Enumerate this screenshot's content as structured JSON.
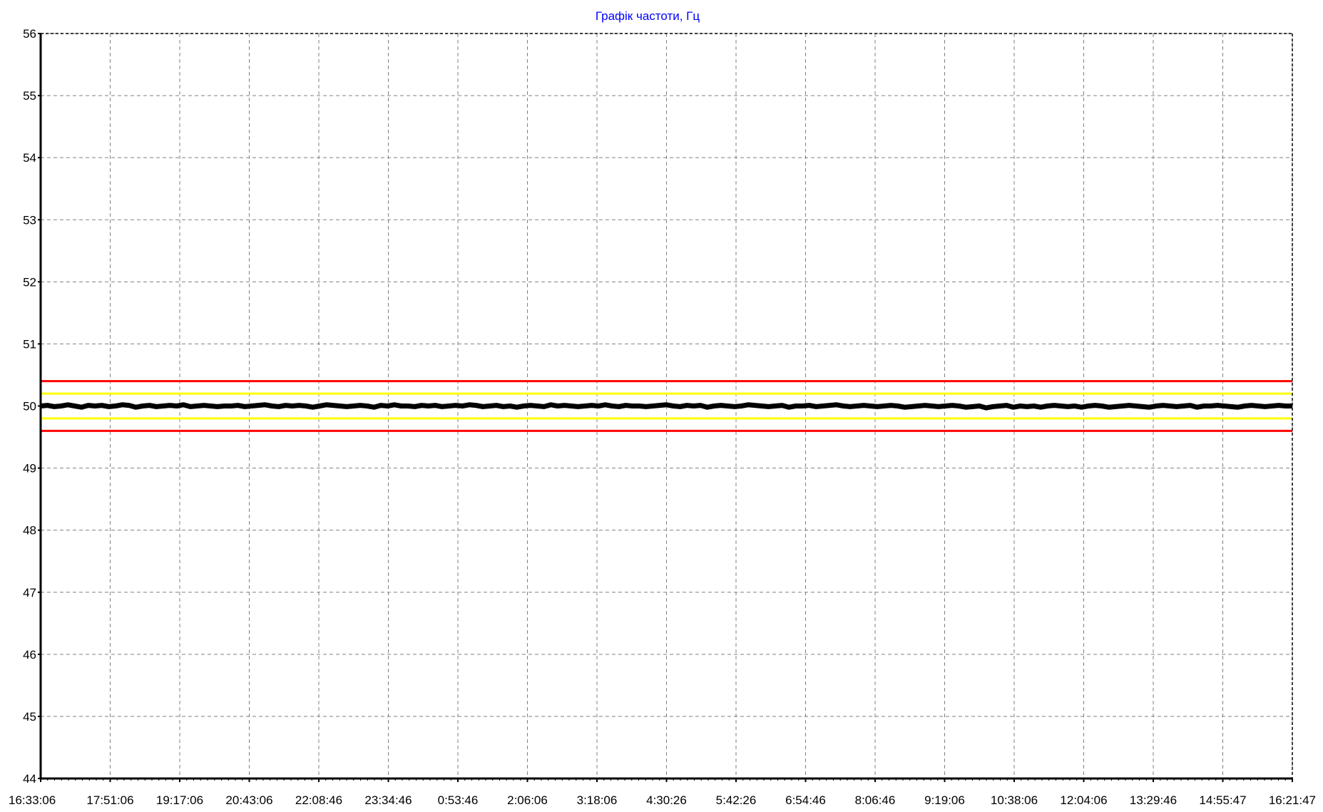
{
  "chart_data": {
    "type": "line",
    "title": "Графік частоти, Гц",
    "xlabel": "",
    "ylabel": "",
    "ylim": [
      44,
      56
    ],
    "yticks": [
      44,
      45,
      46,
      47,
      48,
      49,
      50,
      51,
      52,
      53,
      54,
      55,
      56
    ],
    "xtick_labels": [
      "16:33:06",
      "17:51:06",
      "19:17:06",
      "20:43:06",
      "22:08:46",
      "23:34:46",
      "0:53:46",
      "2:06:06",
      "3:18:06",
      "4:30:26",
      "5:42:26",
      "6:54:46",
      "8:06:46",
      "9:19:06",
      "10:38:06",
      "12:04:06",
      "13:29:46",
      "14:55:47",
      "16:21:47"
    ],
    "grid": true,
    "colors": {
      "title": "#0000ff",
      "series": "#000000",
      "limit_outer": "#ff0000",
      "limit_inner": "#ffff00",
      "grid": "#808080",
      "axis": "#000000"
    },
    "series": [
      {
        "color": "#000000",
        "values": [
          50.0,
          50.01,
          49.99,
          50.0,
          50.02,
          50.0,
          49.98,
          50.01,
          50.0,
          50.01,
          49.99,
          50.0,
          50.02,
          50.01,
          49.98,
          50.0,
          50.01,
          49.99,
          50.0,
          50.01,
          50.0,
          50.02,
          49.99,
          50.0,
          50.01,
          50.0,
          49.99,
          50.0,
          50.0,
          50.01,
          49.99,
          50.0,
          50.01,
          50.02,
          50.0,
          49.99,
          50.01,
          50.0,
          50.01,
          50.0,
          49.98,
          50.0,
          50.02,
          50.01,
          50.0,
          49.99,
          50.0,
          50.01,
          50.0,
          49.98,
          50.01,
          50.0,
          50.02,
          50.0,
          50.0,
          49.99,
          50.01,
          50.0,
          50.01,
          49.99,
          50.0,
          50.01,
          50.0,
          50.02,
          50.01,
          49.99,
          50.0,
          50.01,
          49.99,
          50.0,
          49.98,
          50.0,
          50.01,
          50.0,
          49.99,
          50.02,
          50.0,
          50.01,
          50.0,
          49.99,
          50.0,
          50.01,
          50.0,
          50.02,
          50.0,
          49.99,
          50.01,
          50.0,
          50.0,
          49.99,
          50.0,
          50.01,
          50.02,
          50.0,
          49.99,
          50.01,
          50.0,
          50.01,
          49.98,
          50.0,
          50.01,
          50.0,
          49.99,
          50.0,
          50.02,
          50.01,
          50.0,
          49.99,
          50.0,
          50.01,
          49.98,
          50.0,
          50.0,
          50.01,
          49.99,
          50.0,
          50.01,
          50.02,
          50.0,
          49.99,
          50.0,
          50.01,
          50.0,
          49.99,
          50.0,
          50.01,
          50.0,
          49.98,
          49.99,
          50.0,
          50.01,
          50.0,
          49.99,
          50.0,
          50.01,
          50.0,
          49.98,
          49.99,
          50.0,
          49.97,
          49.99,
          50.0,
          50.01,
          49.98,
          50.0,
          49.99,
          50.0,
          49.98,
          50.0,
          50.01,
          50.0,
          49.99,
          50.0,
          49.98,
          50.0,
          50.01,
          50.0,
          49.98,
          49.99,
          50.0,
          50.01,
          50.0,
          49.99,
          49.98,
          50.0,
          50.01,
          50.0,
          49.99,
          50.0,
          50.01,
          49.98,
          50.0,
          50.0,
          50.01,
          50.0,
          49.99,
          49.98,
          50.0,
          50.01,
          50.0,
          49.99,
          50.0,
          50.01,
          50.0,
          50.0
        ]
      },
      {
        "color": "#ff0000",
        "values": [
          50.4,
          50.4
        ]
      },
      {
        "color": "#ffff00",
        "values": [
          50.2,
          50.2
        ]
      },
      {
        "color": "#ffff00",
        "values": [
          49.8,
          49.8
        ]
      },
      {
        "color": "#ff0000",
        "values": [
          49.6,
          49.6
        ]
      }
    ]
  }
}
